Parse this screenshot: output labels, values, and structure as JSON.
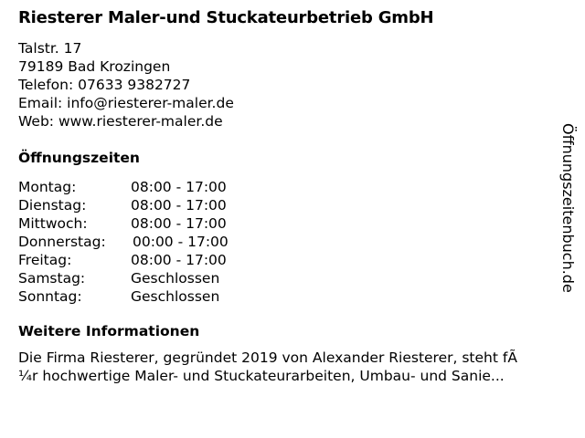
{
  "company": {
    "name": "Riesterer Maler-und Stuckateurbetrieb GmbH",
    "street": "Talstr. 17",
    "city": "79189 Bad Krozingen",
    "phone": "Telefon: 07633 9382727",
    "email": "Email: info@riesterer-maler.de",
    "web": "Web: www.riesterer-maler.de"
  },
  "hours": {
    "heading": "Öffnungszeiten",
    "rows": [
      {
        "day": "Montag:",
        "time": "08:00 - 17:00"
      },
      {
        "day": "Dienstag:",
        "time": "08:00 - 17:00"
      },
      {
        "day": "Mittwoch:",
        "time": "08:00 - 17:00"
      },
      {
        "day": "Donnerstag:",
        "time": "00:00 - 17:00"
      },
      {
        "day": "Freitag:",
        "time": "08:00 - 17:00"
      },
      {
        "day": "Samstag:",
        "time": "Geschlossen"
      },
      {
        "day": "Sonntag:",
        "time": "Geschlossen"
      }
    ]
  },
  "info": {
    "heading": "Weitere Informationen",
    "line1": "Die Firma Riesterer, gegründet 2019 von Alexander Riesterer, steht fÃ",
    "line2": "¼r hochwertige Maler- und Stuckateurarbeiten, Umbau- und Sanie..."
  },
  "watermark": "Öffnungszeitenbuch.de"
}
